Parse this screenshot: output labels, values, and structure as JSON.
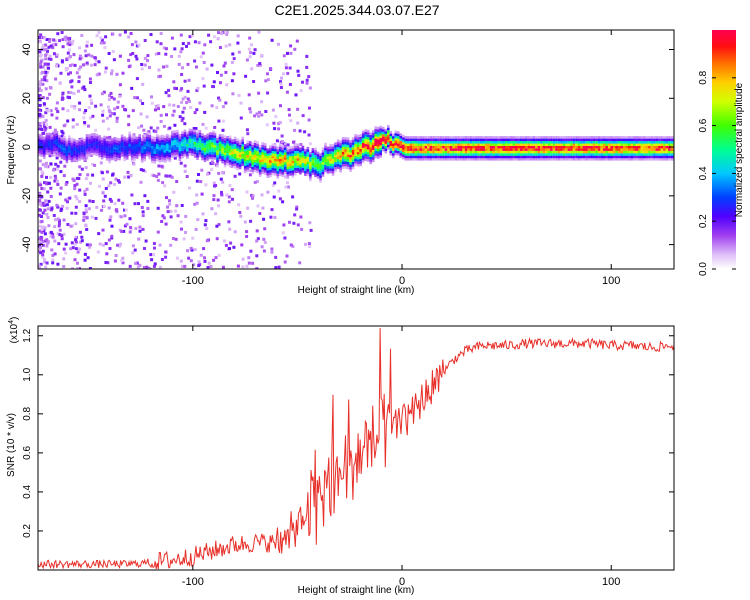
{
  "figure_title": "C2E1.2025.344.03.07.E27",
  "chart_data": [
    {
      "type": "heatmap",
      "name": "spectrogram",
      "title": "C2E1.2025.344.03.07.E27",
      "xlabel": "Height of straight line (km)",
      "ylabel": "Frequency (Hz)",
      "xlim": [
        -174,
        130
      ],
      "ylim": [
        -50,
        48
      ],
      "xticks": [
        -100,
        0,
        100
      ],
      "yticks": [
        -40,
        -20,
        0,
        20,
        40
      ],
      "colorbar": {
        "label": "Normalized spectral amplitude",
        "range": [
          0,
          1
        ],
        "ticks": [
          "0.0",
          "0.2",
          "0.4",
          "0.6",
          "0.8"
        ],
        "tick_values": [
          0,
          0.2,
          0.4,
          0.6,
          0.8
        ],
        "colormap": [
          "#ffffff",
          "#e8c8f8",
          "#a040f0",
          "#5000ff",
          "#0040ff",
          "#00d0ff",
          "#00ff80",
          "#60ff00",
          "#ffff00",
          "#ff8000",
          "#ff0000",
          "#ff0060"
        ]
      },
      "ridge": {
        "description": "dominant frequency trace",
        "x": [
          -174,
          -165,
          -160,
          -150,
          -140,
          -130,
          -120,
          -110,
          -100,
          -90,
          -80,
          -70,
          -60,
          -50,
          -40,
          -35,
          -30,
          -25,
          -20,
          -15,
          -10,
          -8,
          -5,
          0,
          10,
          20,
          40,
          60,
          80,
          100,
          120,
          130
        ],
        "y": [
          1,
          2,
          -1,
          1,
          0,
          1,
          0,
          1,
          2,
          0,
          -2,
          -4,
          -5,
          -5,
          -7,
          -4,
          -3,
          -2,
          0,
          1,
          4,
          4,
          2,
          0,
          0,
          0,
          0,
          0,
          0,
          0,
          0,
          0
        ],
        "amplitude": [
          0.25,
          0.3,
          0.3,
          0.25,
          0.3,
          0.3,
          0.35,
          0.4,
          0.5,
          0.6,
          0.7,
          0.75,
          0.8,
          0.75,
          0.6,
          0.7,
          0.8,
          0.85,
          0.9,
          0.95,
          1.0,
          1.0,
          0.95,
          1.0,
          0.95,
          0.95,
          0.95,
          0.95,
          0.95,
          0.95,
          0.9,
          0.9
        ]
      }
    },
    {
      "type": "line",
      "name": "snr",
      "xlabel": "Height of straight line (km)",
      "ylabel": "SNR (10 * v/v)",
      "multiplier_label": "(x10",
      "multiplier_exp": "4",
      "multiplier_close": ")",
      "xlim": [
        -174,
        130
      ],
      "ylim": [
        0,
        1.25
      ],
      "xticks": [
        -100,
        0,
        100
      ],
      "yticks": [
        0.2,
        0.4,
        0.6,
        0.8,
        1.0,
        1.2
      ],
      "ytick_labels": [
        "0.2",
        "0.4",
        "0.6",
        "0.8",
        "1.0",
        "1.2"
      ],
      "color": "#e8302a",
      "series": [
        {
          "name": "SNR",
          "x": [
            -174,
            -160,
            -150,
            -140,
            -130,
            -120,
            -110,
            -100,
            -90,
            -80,
            -70,
            -60,
            -55,
            -50,
            -45,
            -40,
            -35,
            -30,
            -25,
            -20,
            -15,
            -10,
            -5,
            0,
            5,
            10,
            15,
            20,
            25,
            30,
            35,
            40,
            50,
            60,
            70,
            80,
            90,
            100,
            110,
            120,
            130
          ],
          "y": [
            0.03,
            0.03,
            0.03,
            0.03,
            0.03,
            0.04,
            0.05,
            0.07,
            0.1,
            0.13,
            0.14,
            0.14,
            0.15,
            0.22,
            0.28,
            0.4,
            0.45,
            0.5,
            0.55,
            0.6,
            0.65,
            0.7,
            0.72,
            0.75,
            0.8,
            0.88,
            0.95,
            1.02,
            1.08,
            1.12,
            1.14,
            1.15,
            1.15,
            1.16,
            1.16,
            1.16,
            1.16,
            1.15,
            1.15,
            1.14,
            1.15
          ]
        }
      ]
    }
  ]
}
